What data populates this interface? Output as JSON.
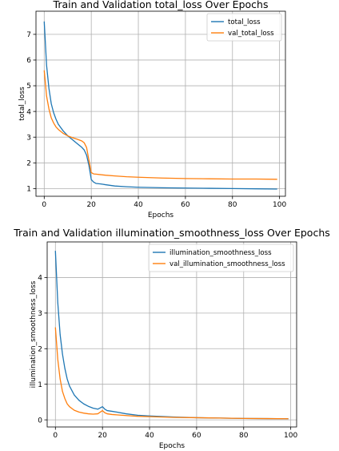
{
  "chart_data": [
    {
      "type": "line",
      "title": "Train and Validation total_loss Over Epochs",
      "xlabel": "Epochs",
      "ylabel": "total_loss",
      "xlim": [
        -3.5,
        102.5
      ],
      "ylim": [
        0.7,
        7.9
      ],
      "xticks": [
        0,
        20,
        40,
        60,
        80,
        100
      ],
      "yticks": [
        1,
        2,
        3,
        4,
        5,
        6,
        7
      ],
      "grid": true,
      "legend": "top-right",
      "series": [
        {
          "name": "total_loss",
          "color": "#1f77b4",
          "x": [
            0,
            1,
            2,
            3,
            4,
            5,
            6,
            8,
            10,
            12,
            14,
            16,
            17,
            18,
            19,
            20,
            21,
            22,
            24,
            26,
            30,
            35,
            40,
            50,
            60,
            70,
            80,
            90,
            99
          ],
          "values": [
            7.5,
            5.8,
            4.9,
            4.3,
            3.95,
            3.7,
            3.5,
            3.25,
            3.05,
            2.9,
            2.75,
            2.6,
            2.5,
            2.3,
            1.9,
            1.35,
            1.25,
            1.2,
            1.18,
            1.15,
            1.1,
            1.07,
            1.05,
            1.03,
            1.02,
            1.01,
            1.0,
            0.99,
            0.98
          ]
        },
        {
          "name": "val_total_loss",
          "color": "#ff7f0e",
          "x": [
            0,
            1,
            2,
            3,
            4,
            5,
            6,
            8,
            10,
            12,
            14,
            16,
            17,
            18,
            19,
            20,
            21,
            22,
            24,
            26,
            30,
            35,
            40,
            50,
            60,
            70,
            80,
            90,
            99
          ],
          "values": [
            5.6,
            4.6,
            4.1,
            3.75,
            3.55,
            3.4,
            3.3,
            3.15,
            3.05,
            2.98,
            2.92,
            2.85,
            2.78,
            2.6,
            2.1,
            1.62,
            1.57,
            1.56,
            1.54,
            1.52,
            1.49,
            1.46,
            1.44,
            1.41,
            1.39,
            1.38,
            1.37,
            1.37,
            1.36
          ]
        }
      ]
    },
    {
      "type": "line",
      "title": "Train and Validation illumination_smoothness_loss Over Epochs",
      "xlabel": "Epochs",
      "ylabel": "illumination_smoothness_loss",
      "xlim": [
        -3.5,
        102.5
      ],
      "ylim": [
        -0.2,
        5.0
      ],
      "xticks": [
        0,
        20,
        40,
        60,
        80,
        100
      ],
      "yticks": [
        0,
        1,
        2,
        3,
        4
      ],
      "grid": true,
      "legend": "top-right",
      "series": [
        {
          "name": "illumination_smoothness_loss",
          "color": "#1f77b4",
          "x": [
            0,
            1,
            2,
            3,
            4,
            5,
            6,
            8,
            10,
            12,
            14,
            16,
            18,
            20,
            21,
            22,
            24,
            26,
            30,
            35,
            40,
            50,
            60,
            70,
            80,
            90,
            99
          ],
          "values": [
            4.75,
            3.3,
            2.4,
            1.85,
            1.45,
            1.15,
            0.95,
            0.7,
            0.55,
            0.45,
            0.38,
            0.33,
            0.3,
            0.37,
            0.3,
            0.26,
            0.24,
            0.22,
            0.17,
            0.13,
            0.11,
            0.08,
            0.06,
            0.05,
            0.04,
            0.035,
            0.03
          ]
        },
        {
          "name": "val_illumination_smoothness_loss",
          "color": "#ff7f0e",
          "x": [
            0,
            1,
            2,
            3,
            4,
            5,
            6,
            8,
            10,
            12,
            14,
            16,
            18,
            20,
            21,
            22,
            24,
            26,
            30,
            35,
            40,
            50,
            60,
            70,
            80,
            90,
            99
          ],
          "values": [
            2.6,
            1.7,
            1.15,
            0.8,
            0.6,
            0.45,
            0.37,
            0.27,
            0.22,
            0.19,
            0.17,
            0.16,
            0.17,
            0.26,
            0.2,
            0.17,
            0.15,
            0.14,
            0.12,
            0.1,
            0.09,
            0.07,
            0.06,
            0.05,
            0.04,
            0.035,
            0.03
          ]
        }
      ]
    }
  ]
}
